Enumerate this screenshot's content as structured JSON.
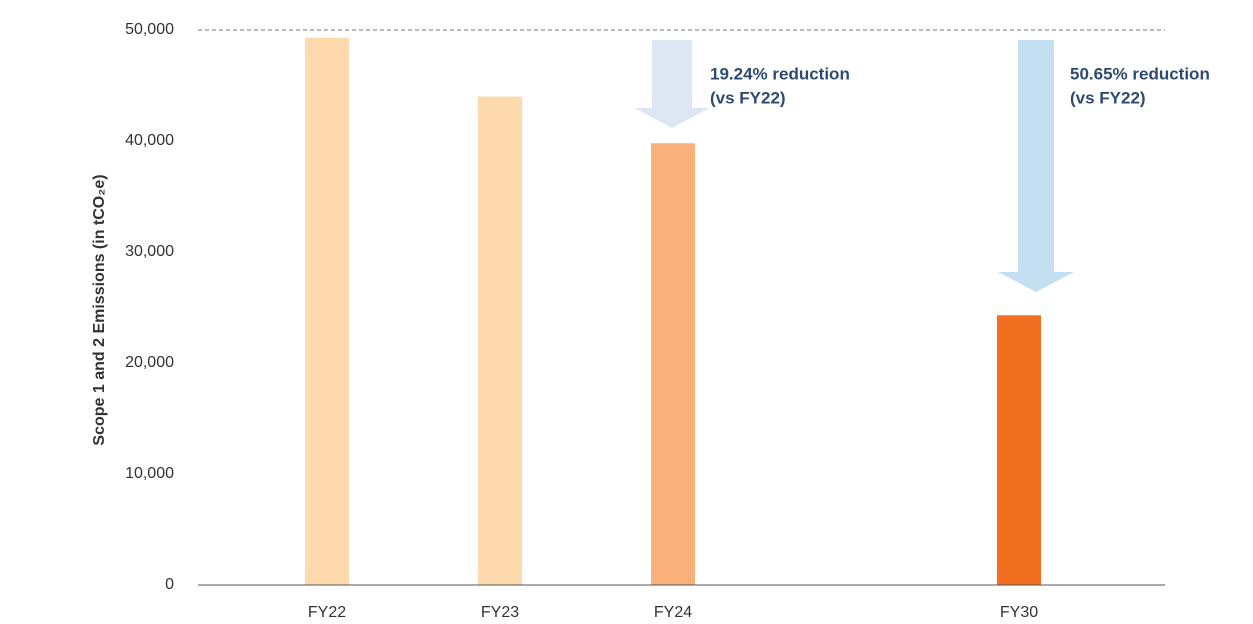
{
  "chart_data": {
    "type": "bar",
    "y_label": "Scope 1 and 2 Emissions (in tCO₂e)",
    "categories": [
      "FY22",
      "FY23",
      "FY24",
      null,
      "FY30"
    ],
    "values": [
      49300,
      44000,
      39800,
      null,
      24300
    ],
    "colors": [
      "#fdd9ad",
      "#fdd9ad",
      "#f9b07a",
      null,
      "#f26f21"
    ],
    "ylim": [
      0,
      50000
    ],
    "yticks": [
      0,
      {
        "value": 10000,
        "label": "10,000"
      },
      {
        "value": 20000,
        "label": "20,000"
      },
      {
        "value": 30000,
        "label": "30,000"
      },
      {
        "value": 40000,
        "label": "40,000"
      },
      {
        "value": 50000,
        "label": "50,000"
      }
    ],
    "annotations": [
      {
        "lines": [
          "19.24% reduction",
          "(vs FY22)"
        ]
      },
      {
        "lines": [
          "50.65% reduction",
          "(vs FY22)"
        ]
      }
    ]
  }
}
